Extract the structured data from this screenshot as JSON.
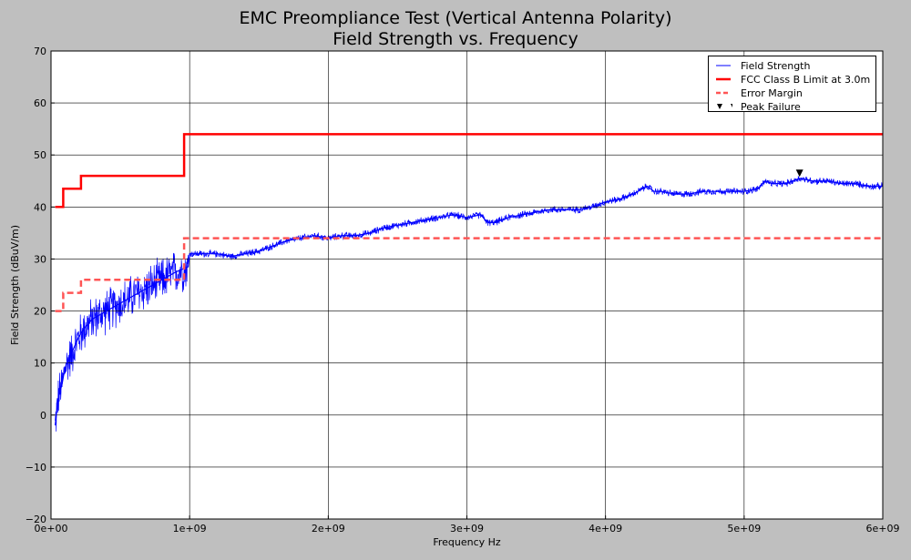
{
  "chart_data": {
    "type": "line",
    "title": [
      "EMC Preompliance Test (Vertical Antenna Polarity)",
      "Field Strength vs. Frequency"
    ],
    "xlabel": "Frequency Hz",
    "ylabel": "Field Strength (dBuV/m)",
    "xlim": [
      0,
      6000000000
    ],
    "ylim": [
      -20,
      70
    ],
    "grid": true,
    "legend_position": "top-right",
    "x_ticks": [
      0,
      1000000000,
      2000000000,
      3000000000,
      4000000000,
      5000000000,
      6000000000
    ],
    "x_tick_labels": [
      "0e+00",
      "1e+09",
      "2e+09",
      "3e+09",
      "4e+09",
      "5e+09",
      "6e+09"
    ],
    "y_ticks": [
      -20,
      -10,
      0,
      10,
      20,
      30,
      40,
      50,
      60,
      70
    ],
    "y_tick_labels": [
      "−20",
      "−10",
      "0",
      "10",
      "20",
      "30",
      "40",
      "50",
      "60",
      "70"
    ],
    "series": [
      {
        "name": "Field Strength",
        "color": "#0000ff",
        "style": "noisy-line",
        "x": [
          30000000,
          50000000,
          80000000,
          100000000,
          150000000,
          200000000,
          250000000,
          300000000,
          400000000,
          500000000,
          600000000,
          700000000,
          800000000,
          900000000,
          990000000,
          1000000000,
          1100000000,
          1200000000,
          1300000000,
          1400000000,
          1500000000,
          1600000000,
          1700000000,
          1800000000,
          1900000000,
          2000000000,
          2100000000,
          2200000000,
          2300000000,
          2400000000,
          2500000000,
          2600000000,
          2700000000,
          2800000000,
          2900000000,
          3000000000,
          3100000000,
          3150000000,
          3200000000,
          3300000000,
          3400000000,
          3500000000,
          3600000000,
          3700000000,
          3800000000,
          3900000000,
          4000000000,
          4100000000,
          4200000000,
          4300000000,
          4350000000,
          4400000000,
          4500000000,
          4600000000,
          4700000000,
          4800000000,
          4900000000,
          5000000000,
          5100000000,
          5150000000,
          5200000000,
          5300000000,
          5400000000,
          5500000000,
          5600000000,
          5700000000,
          5800000000,
          5900000000,
          6000000000
        ],
        "values": [
          -2,
          3,
          6,
          9,
          12,
          15,
          17,
          18.5,
          20,
          21.5,
          23,
          24.5,
          26,
          27.5,
          28.5,
          31,
          31,
          31,
          30.5,
          31,
          31.5,
          32.5,
          33.5,
          34,
          34.5,
          34,
          34.5,
          34.5,
          35,
          36,
          36.5,
          37,
          37.5,
          38,
          38.5,
          38,
          38.5,
          37,
          37,
          38,
          38.5,
          39,
          39.5,
          39.5,
          39.5,
          40,
          41,
          41.5,
          42.5,
          44,
          43,
          43,
          42.5,
          42.5,
          43,
          43,
          43,
          43,
          43.5,
          45,
          44.5,
          44.5,
          45.5,
          45,
          45,
          44.5,
          44.5,
          44,
          44
        ],
        "noise_band": [
          5,
          5,
          5,
          5,
          5,
          5,
          5,
          5,
          5,
          5,
          5,
          5,
          5,
          5,
          5,
          0.8,
          0.8,
          0.8,
          0.8,
          0.8,
          0.8,
          0.8,
          0.8,
          0.8,
          0.8,
          0.8,
          0.8,
          0.8,
          0.8,
          0.8,
          0.8,
          0.8,
          0.8,
          0.8,
          0.8,
          0.8,
          0.8,
          0.8,
          0.8,
          0.8,
          0.8,
          0.8,
          0.8,
          0.8,
          0.8,
          0.8,
          0.8,
          0.8,
          0.8,
          0.8,
          0.8,
          0.8,
          0.8,
          0.8,
          0.8,
          0.8,
          0.8,
          0.8,
          0.8,
          0.8,
          0.8,
          0.8,
          0.8,
          0.8,
          0.8,
          0.8,
          0.8,
          0.8,
          0.8
        ]
      },
      {
        "name": "FCC Class B Limit  at 3.0m",
        "color": "#ff0000",
        "style": "step",
        "x": [
          30000000,
          88000000,
          88000000,
          216000000,
          216000000,
          960000000,
          960000000,
          6000000000
        ],
        "values": [
          40,
          40,
          43.5,
          43.5,
          46,
          46,
          54,
          54
        ]
      },
      {
        "name": "Error Margin",
        "color": "#ff5555",
        "style": "dashed-step",
        "x": [
          30000000,
          88000000,
          88000000,
          216000000,
          216000000,
          960000000,
          960000000,
          6000000000
        ],
        "values": [
          20,
          20,
          23.5,
          23.5,
          26,
          26,
          34,
          34
        ]
      },
      {
        "name": "Peak Failure",
        "color": "#000000",
        "style": "marker-triangle-down",
        "x": [
          5400000000
        ],
        "values": [
          46.5
        ]
      }
    ]
  }
}
